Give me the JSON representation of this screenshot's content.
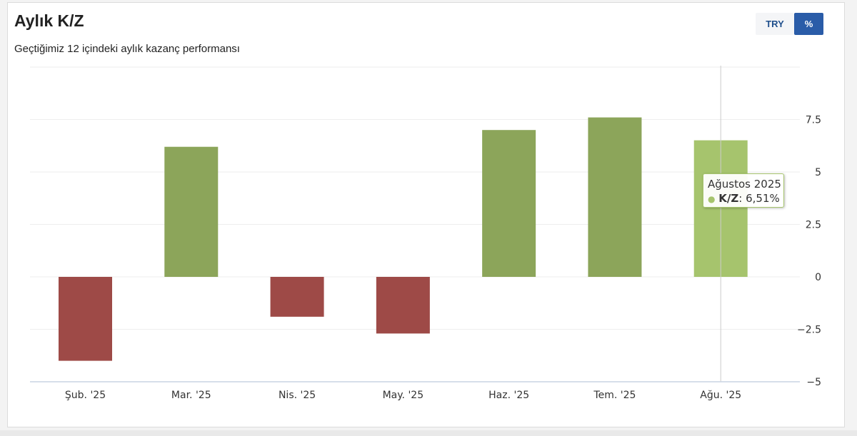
{
  "header": {
    "title": "Aylık K/Z",
    "subtitle": "Geçtiğimiz 12 içindeki aylık kazanç performansı"
  },
  "toggle": {
    "try_label": "TRY",
    "pct_label": "%",
    "selected": "%"
  },
  "colors": {
    "positive": "#8ca55a",
    "negative": "#9e4a47",
    "highlight": "#a6c46d",
    "grid": "#eeeeee",
    "axis": "#c9d4e3"
  },
  "tooltip": {
    "title": "Ağustos 2025",
    "series": "K/Z",
    "separator": ":",
    "value": "6,51%"
  },
  "chart_data": {
    "type": "bar",
    "categories": [
      "Şub. '25",
      "Mar. '25",
      "Nis. '25",
      "May. '25",
      "Haz. '25",
      "Tem. '25",
      "Ağu. '25"
    ],
    "values": [
      -4.0,
      6.2,
      -1.9,
      -2.7,
      7.0,
      7.6,
      6.51
    ],
    "y_ticks": [
      "7.5",
      "5",
      "2.5",
      "0",
      "−2.5",
      "−5"
    ],
    "y_tick_values": [
      7.5,
      5,
      2.5,
      0,
      -2.5,
      -5
    ],
    "ylim": [
      -5,
      10
    ],
    "y_axis_side": "right",
    "grid": true,
    "highlighted_index": 6
  }
}
